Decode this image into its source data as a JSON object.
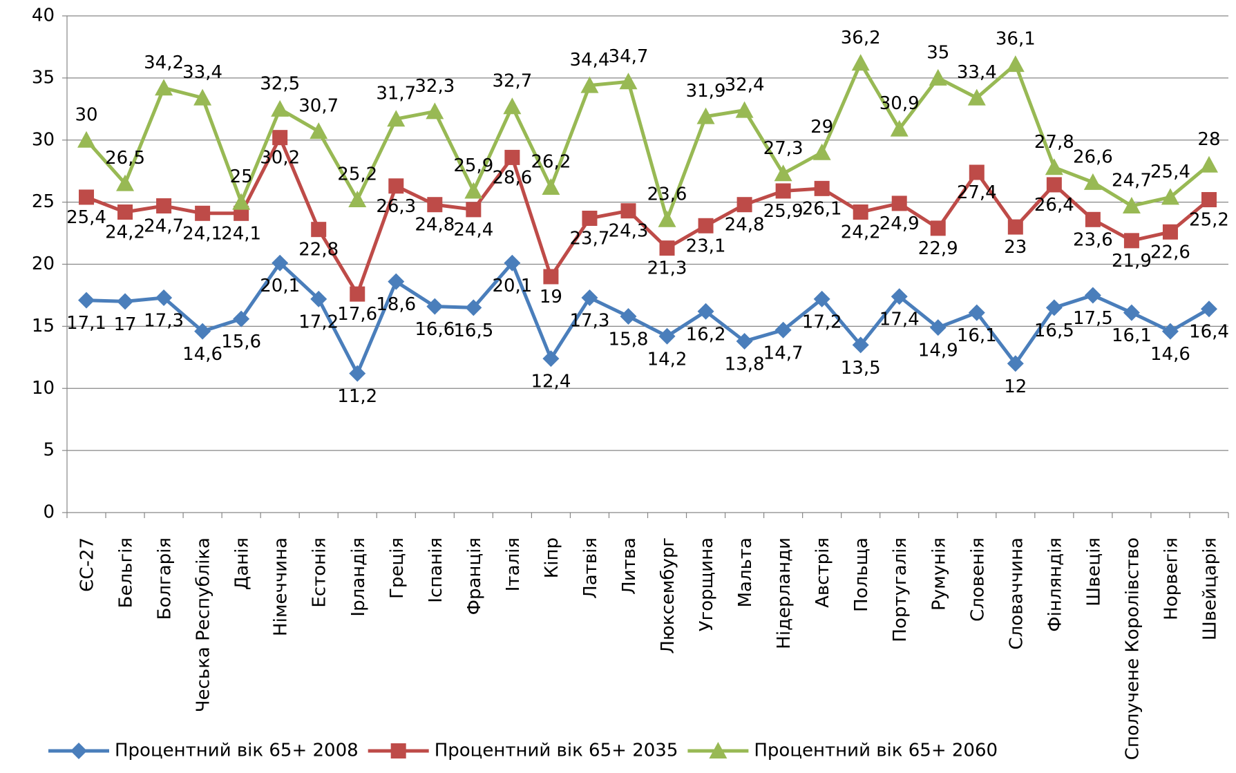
{
  "chart_data": {
    "type": "line",
    "categories": [
      "ЄС-27",
      "Бельгія",
      "Болгарія",
      "Чеська Республіка",
      "Данія",
      "Німеччина",
      "Естонія",
      "Ірландія",
      "Греція",
      "Іспанія",
      "Франція",
      "Італія",
      "Кіпр",
      "Латвія",
      "Литва",
      "Люксембург",
      "Угорщина",
      "Мальта",
      "Нідерланди",
      "Австрія",
      "Польща",
      "Португалія",
      "Румунія",
      "Словенія",
      "Словаччина",
      "Фінляндія",
      "Швеція",
      "Сполучене Королівство",
      "Норвегія",
      "Швейцарія"
    ],
    "series": [
      {
        "name": "Процентний вік  65+ 2008",
        "color": "#4a7ebb",
        "marker": "diamond",
        "values": [
          17.1,
          17,
          17.3,
          14.6,
          15.6,
          20.1,
          17.2,
          11.2,
          18.6,
          16.6,
          16.5,
          20.1,
          12.4,
          17.3,
          15.8,
          14.2,
          16.2,
          13.8,
          14.7,
          17.2,
          13.5,
          17.4,
          14.9,
          16.1,
          12,
          16.5,
          17.5,
          16.1,
          14.6,
          16.4
        ],
        "value_labels": [
          "17,1",
          "17",
          "17,3",
          "14,6",
          "15,6",
          "20,1",
          "17,2",
          "11,2",
          "18,6",
          "16,6",
          "16,5",
          "20,1",
          "12,4",
          "17,3",
          "15,8",
          "14,2",
          "16,2",
          "13,8",
          "14,7",
          "17,2",
          "13,5",
          "17,4",
          "14,9",
          "16,1",
          "12",
          "16,5",
          "17,5",
          "16,1",
          "14,6",
          "16,4"
        ]
      },
      {
        "name": "Процентний вік  65+ 2035",
        "color": "#be4b48",
        "marker": "square",
        "values": [
          25.4,
          24.2,
          24.7,
          24.1,
          24.1,
          30.2,
          22.8,
          17.6,
          26.3,
          24.8,
          24.4,
          28.6,
          19,
          23.7,
          24.3,
          21.3,
          23.1,
          24.8,
          25.9,
          26.1,
          24.2,
          24.9,
          22.9,
          27.4,
          23,
          26.4,
          23.6,
          21.9,
          22.6,
          25.2
        ],
        "value_labels": [
          "25,4",
          "24,2",
          "24,7",
          "24,1",
          "24,1",
          "30,2",
          "22,8",
          "17,6",
          "26,3",
          "24,8",
          "24,4",
          "28,6",
          "19",
          "23,7",
          "24,3",
          "21,3",
          "23,1",
          "24,8",
          "25,9",
          "26,1",
          "24,2",
          "24,9",
          "22,9",
          "27,4",
          "23",
          "26,4",
          "23,6",
          "21,9",
          "22,6",
          "25,2"
        ]
      },
      {
        "name": "Процентний вік  65+ 2060",
        "color": "#98b954",
        "marker": "triangle",
        "values": [
          30,
          26.5,
          34.2,
          33.4,
          25,
          32.5,
          30.7,
          25.2,
          31.7,
          32.3,
          25.9,
          32.7,
          26.2,
          34.4,
          34.7,
          23.6,
          31.9,
          32.4,
          27.3,
          29,
          36.2,
          30.9,
          35,
          33.4,
          36.1,
          27.8,
          26.6,
          24.7,
          25.4,
          28
        ],
        "value_labels": [
          "30",
          "26,5",
          "34,2",
          "33,4",
          "25",
          "32,5",
          "30,7",
          "25,2",
          "31,7",
          "32,3",
          "25,9",
          "32,7",
          "26,2",
          "34,4",
          "34,7",
          "23,6",
          "31,9",
          "32,4",
          "27,3",
          "29",
          "36,2",
          "30,9",
          "35",
          "33,4",
          "36,1",
          "27,8",
          "26,6",
          "24,7",
          "25,4",
          "28"
        ]
      }
    ],
    "ylim": [
      0,
      40
    ],
    "yticks": [
      0,
      5,
      10,
      15,
      20,
      25,
      30,
      35,
      40
    ],
    "grid": true,
    "legend": "bottom"
  }
}
